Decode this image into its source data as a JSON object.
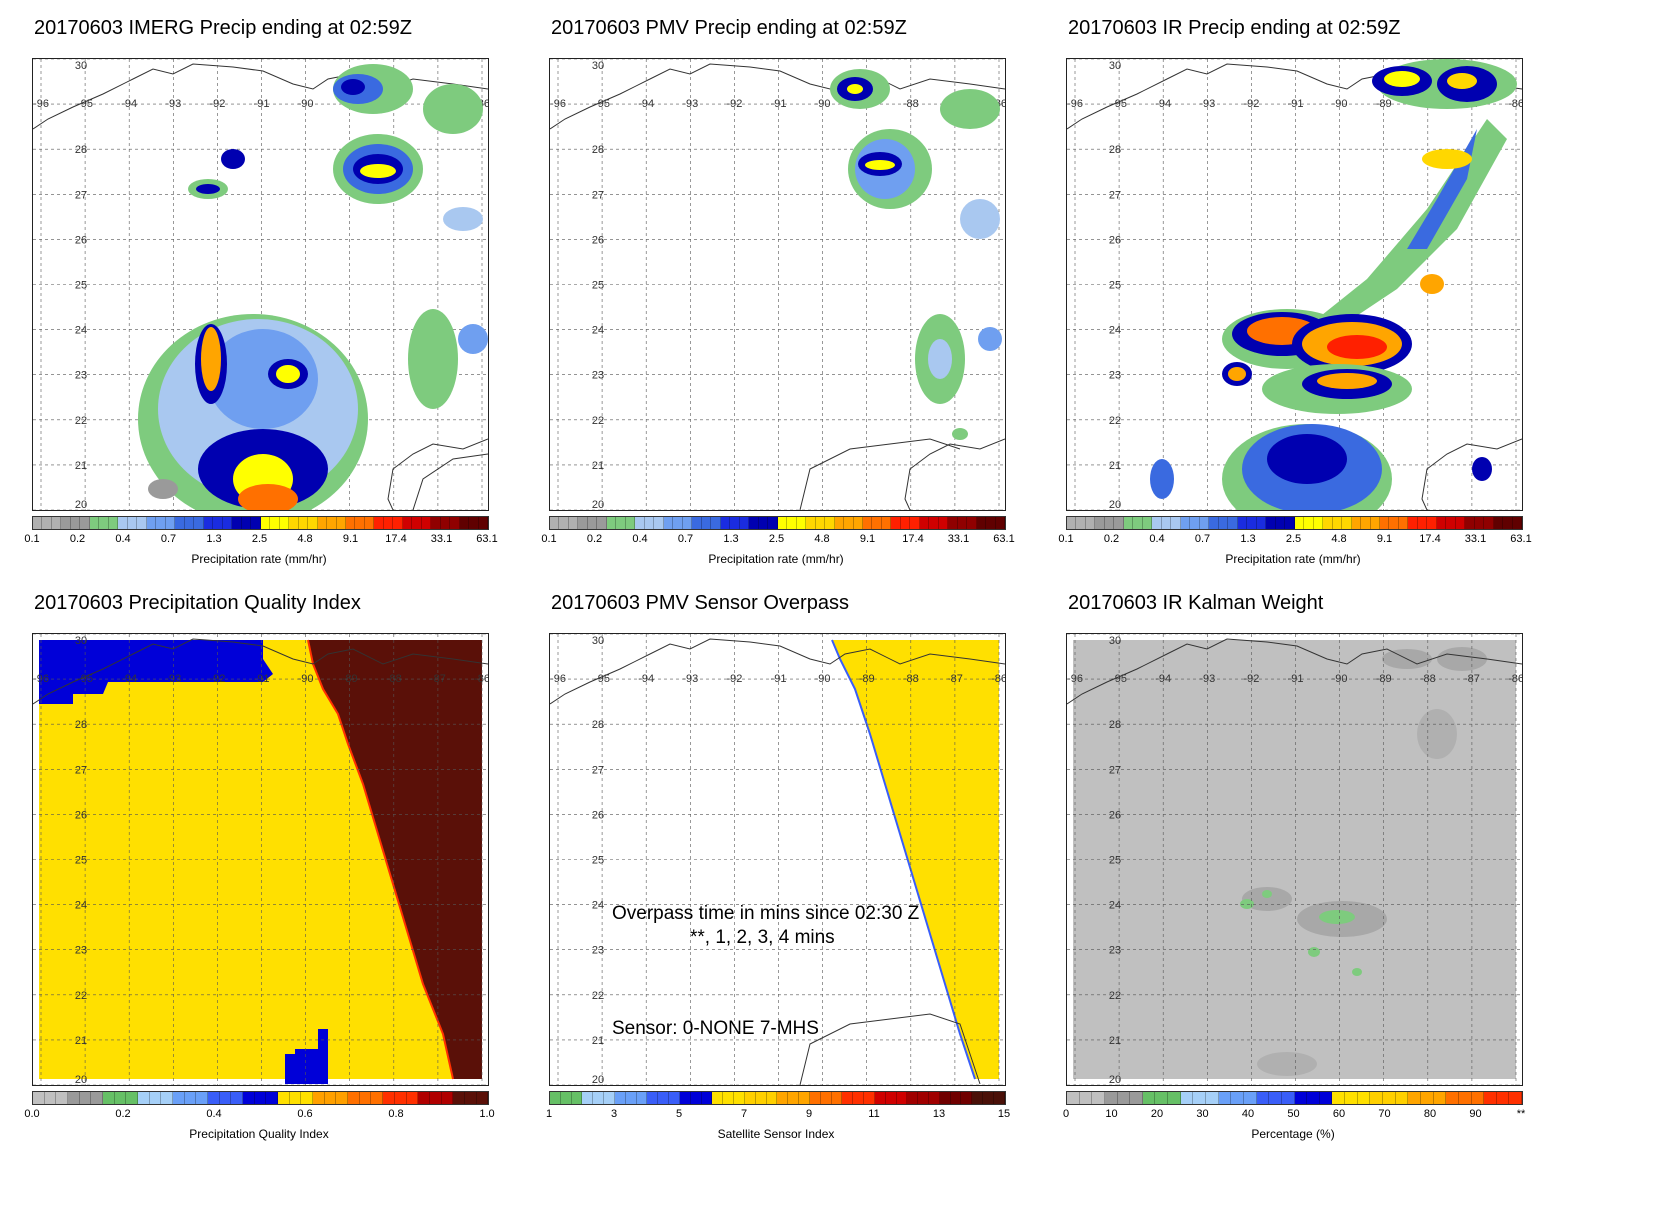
{
  "panels": [
    {
      "title": "20170603 IMERG Precip ending at 02:59Z",
      "cbar_label": "Precipitation rate (mm/hr)",
      "ticks": [
        "0.1",
        "0.2",
        "0.4",
        "0.7",
        "1.3",
        "2.5",
        "4.8",
        "9.1",
        "17.4",
        "33.1",
        "63.1"
      ]
    },
    {
      "title": "20170603 PMV Precip ending at 02:59Z",
      "cbar_label": "Precipitation rate (mm/hr)",
      "ticks": [
        "0.1",
        "0.2",
        "0.4",
        "0.7",
        "1.3",
        "2.5",
        "4.8",
        "9.1",
        "17.4",
        "33.1",
        "63.1"
      ]
    },
    {
      "title": "20170603 IR Precip ending at 02:59Z",
      "cbar_label": "Precipitation rate (mm/hr)",
      "ticks": [
        "0.1",
        "0.2",
        "0.4",
        "0.7",
        "1.3",
        "2.5",
        "4.8",
        "9.1",
        "17.4",
        "33.1",
        "63.1"
      ]
    },
    {
      "title": "20170603 Precipitation Quality Index",
      "cbar_label": "Precipitation Quality Index",
      "ticks": [
        "0.0",
        "0.2",
        "0.4",
        "0.6",
        "0.8",
        "1.0"
      ]
    },
    {
      "title": "20170603 PMV Sensor Overpass",
      "cbar_label": "Satellite Sensor Index",
      "ticks": [
        "1",
        "3",
        "5",
        "7",
        "9",
        "11",
        "13",
        "15"
      ],
      "note1": "Overpass time in mins since 02:30 Z",
      "note2": "**, 1, 2, 3, 4 mins",
      "note3": "Sensor:   0-NONE  7-MHS"
    },
    {
      "title": "20170603 IR Kalman Weight",
      "cbar_label": "Percentage (%)",
      "ticks": [
        "0",
        "10",
        "20",
        "30",
        "40",
        "50",
        "60",
        "70",
        "80",
        "90",
        "**"
      ]
    }
  ],
  "lon_labels": [
    "-96",
    "-95",
    "-94",
    "-93",
    "-92",
    "-91",
    "-90",
    "-89",
    "-88",
    "-87",
    "-86"
  ],
  "lat_labels": [
    "30",
    "29",
    "28",
    "27",
    "26",
    "25",
    "24",
    "23",
    "22",
    "21",
    "20"
  ],
  "colors": {
    "precip_scale": [
      "#b0b0b0",
      "#9a9a9a",
      "#7ecb7e",
      "#a9c8f0",
      "#6f9ff0",
      "#3a6ae0",
      "#1a2ce0",
      "#0000b0",
      "#ffff00",
      "#ffd700",
      "#ffa500",
      "#ff7000",
      "#ff2000",
      "#d00000",
      "#900000",
      "#600000"
    ],
    "pqi_scale": [
      "#c0c0c0",
      "#9a9a9a",
      "#66c066",
      "#a6d0f8",
      "#6aa0f8",
      "#3a5ef8",
      "#0000d8",
      "#ffe000",
      "#ffa000",
      "#ff7000",
      "#ff3000",
      "#b00000",
      "#5a1008"
    ],
    "sensor_scale": [
      "#66c066",
      "#a6d0f8",
      "#6aa0f8",
      "#3a5ef8",
      "#0000d8",
      "#ffe000",
      "#ffd000",
      "#ffa500",
      "#ff7000",
      "#ff3000",
      "#d00000",
      "#a00000",
      "#700000",
      "#4a1008"
    ],
    "kalman_scale": [
      "#c0c0c0",
      "#9a9a9a",
      "#66c066",
      "#a6d0f8",
      "#6aa0f8",
      "#3a5ef8",
      "#0000d8",
      "#ffe000",
      "#ffd000",
      "#ffa500",
      "#ff7000",
      "#ff3000"
    ]
  }
}
